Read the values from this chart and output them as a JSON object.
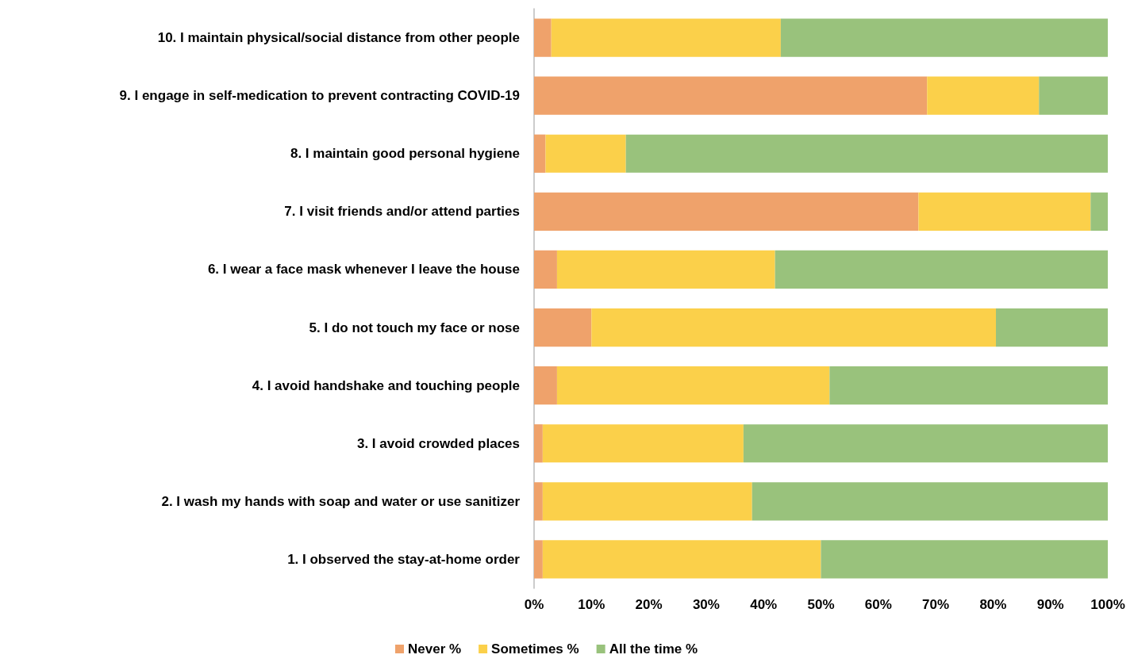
{
  "chart_data": {
    "type": "bar",
    "orientation": "horizontal",
    "stacked": true,
    "categories": [
      "10. I maintain physical/social distance from other people",
      "9. I engage in self-medication to prevent contracting COVID-19",
      "8. I maintain good personal hygiene",
      "7. I visit friends and/or attend parties",
      "6. I wear a face mask whenever I leave the house",
      "5. I do not touch my face or nose",
      "4. I avoid handshake and touching people",
      "3. I avoid crowded places",
      "2. I wash my hands with soap and water or use sanitizer",
      "1. I observed the stay-at-home order"
    ],
    "series": [
      {
        "name": "Never %",
        "color": "#efa26b",
        "values": [
          3,
          68.5,
          2,
          67,
          4,
          10,
          4,
          1.5,
          1.5,
          1.5
        ]
      },
      {
        "name": "Sometimes %",
        "color": "#fbd04a",
        "values": [
          40,
          19.5,
          14,
          30,
          38,
          70.5,
          47.5,
          35,
          36.5,
          48.5
        ]
      },
      {
        "name": "All the time %",
        "color": "#99c27c",
        "values": [
          57,
          12,
          84,
          3,
          58,
          19.5,
          48.5,
          63.5,
          62,
          50
        ]
      }
    ],
    "xlim": [
      0,
      100
    ],
    "xticks": [
      {
        "value": 0,
        "label": "0%"
      },
      {
        "value": 10,
        "label": "10%"
      },
      {
        "value": 20,
        "label": "20%"
      },
      {
        "value": 30,
        "label": "30%"
      },
      {
        "value": 40,
        "label": "40%"
      },
      {
        "value": 50,
        "label": "50%"
      },
      {
        "value": 60,
        "label": "60%"
      },
      {
        "value": 70,
        "label": "70%"
      },
      {
        "value": 80,
        "label": "80%"
      },
      {
        "value": 90,
        "label": "90%"
      },
      {
        "value": 100,
        "label": "100%"
      }
    ],
    "grid": false,
    "legend": "bottom"
  }
}
